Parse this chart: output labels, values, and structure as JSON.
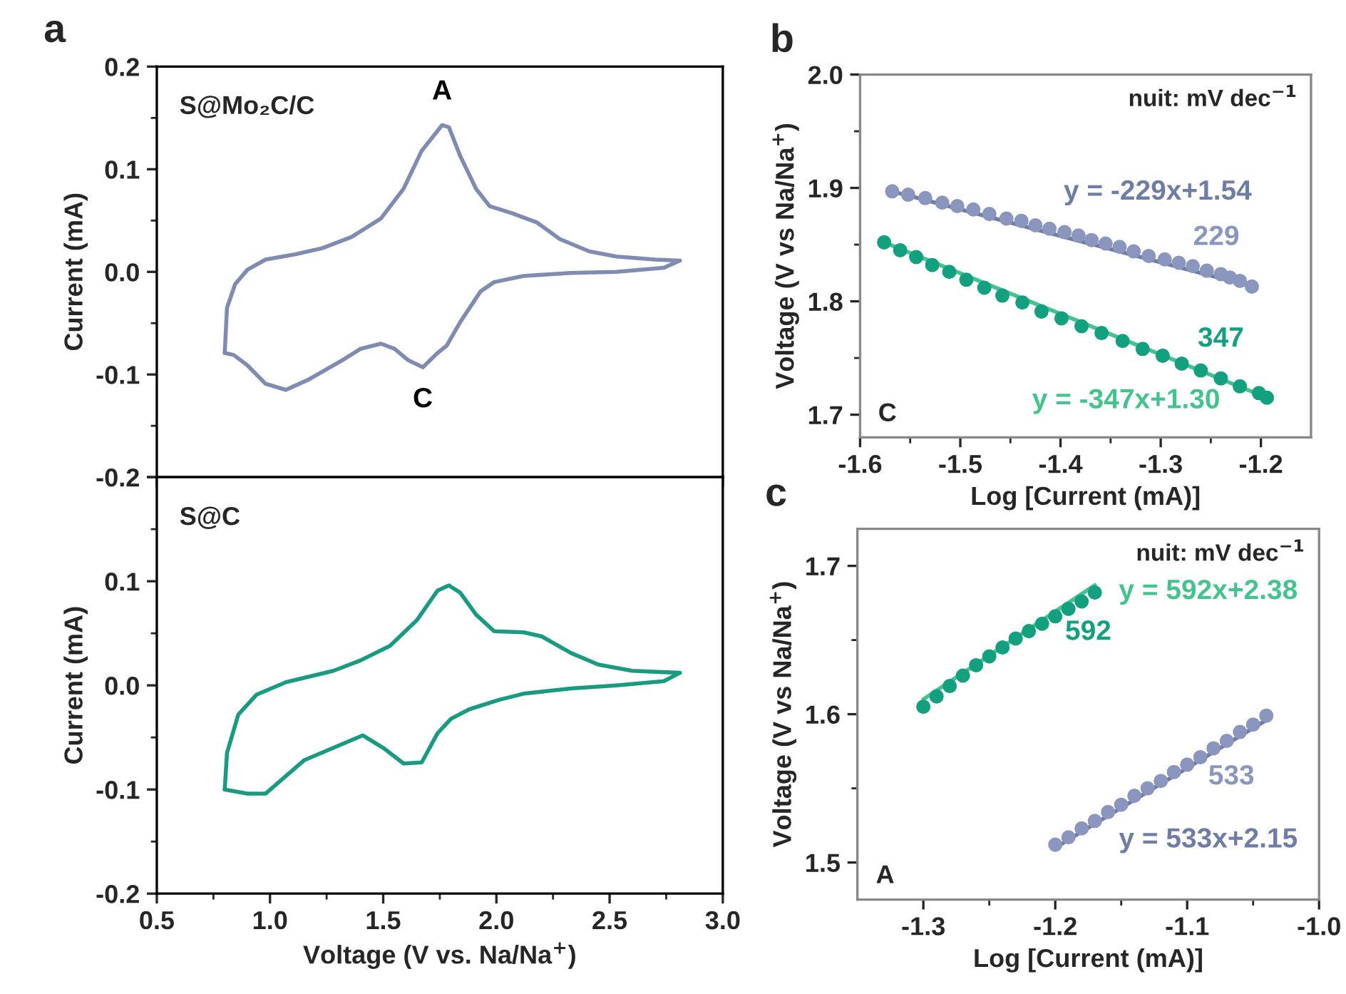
{
  "chart_data": [
    {
      "type": "line",
      "ylabel": "Current (mA)",
      "xlim": [
        0.5,
        3.0
      ],
      "xticks": [
        0.5,
        1,
        1.5,
        2,
        2.5,
        3
      ],
      "ylim": [
        -0.2,
        0.2
      ],
      "yticks": [
        -0.2,
        -0.1,
        {
          "value": 0,
          "label": "0.0"
        },
        0.1,
        0.2
      ],
      "tick_labels": "y",
      "annotations": [
        "a",
        "S@Mo₂C/C",
        {
          "text": "A",
          "x": 1.76,
          "y": 0.143
        },
        {
          "text": "C",
          "x": 1.675,
          "y": -0.093
        }
      ],
      "series": [
        {
          "color": "#7f8bb0",
          "x": [
            0.8,
            0.81,
            0.846,
            0.9,
            0.98,
            1.11,
            1.23,
            1.36,
            1.49,
            1.59,
            1.67,
            1.76,
            1.79,
            1.84,
            1.91,
            1.97,
            2.07,
            2.18,
            2.28,
            2.41,
            2.53,
            2.7,
            2.81
          ],
          "values": [
            -0.079,
            -0.035,
            -0.012,
            0.002,
            0.012,
            0.017,
            0.023,
            0.034,
            0.052,
            0.081,
            0.118,
            0.143,
            0.141,
            0.113,
            0.081,
            0.064,
            0.057,
            0.048,
            0.032,
            0.02,
            0.015,
            0.012,
            0.011
          ]
        },
        {
          "color": "#7f8bb0",
          "x": [
            2.81,
            2.74,
            2.53,
            2.33,
            2.12,
            1.99,
            1.93,
            1.84,
            1.78,
            1.74,
            1.675,
            1.61,
            1.55,
            1.49,
            1.4,
            1.32,
            1.17,
            1.07,
            0.98,
            0.9,
            0.84,
            0.8
          ],
          "values": [
            0.011,
            0.004,
            0.0,
            -0.001,
            -0.004,
            -0.01,
            -0.019,
            -0.049,
            -0.072,
            -0.079,
            -0.093,
            -0.086,
            -0.075,
            -0.07,
            -0.075,
            -0.086,
            -0.105,
            -0.115,
            -0.109,
            -0.091,
            -0.081,
            -0.079
          ]
        }
      ]
    },
    {
      "type": "line",
      "ylabel": "Current (mA)",
      "xlabel": "Voltage (V vs. Na/Na$^{+}$)",
      "xlim": [
        0.5,
        3.0
      ],
      "xticks": [
        0.5,
        {
          "value": 1.0,
          "label": "1.0"
        },
        1.5,
        {
          "value": 2.0,
          "label": "2.0"
        },
        2.5,
        {
          "value": 3.0,
          "label": "3.0"
        }
      ],
      "ylim": [
        -0.2,
        0.2
      ],
      "yticks": [
        -0.2,
        -0.1,
        {
          "value": 0,
          "label": "0.0"
        },
        0.1,
        {
          "value": 0.2,
          "label": null
        }
      ],
      "annotations": [
        "S@C"
      ],
      "series": [
        {
          "color": "#1a9a80",
          "x": [
            0.8,
            0.81,
            0.86,
            0.94,
            1.07,
            1.28,
            1.4,
            1.53,
            1.65,
            1.74,
            1.79,
            1.84,
            1.91,
            1.99,
            2.12,
            2.2,
            2.33,
            2.45,
            2.6,
            2.81
          ],
          "values": [
            -0.1,
            -0.065,
            -0.028,
            -0.009,
            0.003,
            0.014,
            0.024,
            0.038,
            0.063,
            0.091,
            0.096,
            0.089,
            0.068,
            0.052,
            0.051,
            0.047,
            0.031,
            0.02,
            0.014,
            0.012
          ]
        },
        {
          "color": "#1a9a80",
          "x": [
            2.81,
            2.74,
            2.53,
            2.33,
            2.12,
            2.01,
            1.88,
            1.8,
            1.74,
            1.67,
            1.59,
            1.5,
            1.41,
            1.28,
            1.15,
            0.98,
            0.9,
            0.8
          ],
          "values": [
            0.012,
            0.004,
            0.0,
            -0.003,
            -0.008,
            -0.014,
            -0.023,
            -0.032,
            -0.046,
            -0.074,
            -0.075,
            -0.06,
            -0.048,
            -0.06,
            -0.072,
            -0.104,
            -0.104,
            -0.1
          ]
        }
      ]
    },
    {
      "type": "scatter",
      "marker": "circle",
      "xlabel": "Log [Current (mA)]",
      "ylabel": "Voltage (V vs Na/Na$^{+}$)",
      "xlim": [
        -1.6,
        -1.15
      ],
      "xticks": [
        -1.6,
        -1.5,
        -1.4,
        -1.3,
        -1.2
      ],
      "ylim": [
        1.68,
        2.0
      ],
      "yticks": [
        1.7,
        1.8,
        1.9,
        {
          "value": 2.0,
          "label": "2.0"
        }
      ],
      "annotations": [
        "b",
        "nuit: mV dec$^{−1}$",
        "C"
      ],
      "series": [
        {
          "name": "229",
          "color": "#8a96bd",
          "x": [
            -1.568,
            -1.552,
            -1.535,
            -1.518,
            -1.503,
            -1.487,
            -1.471,
            -1.454,
            -1.439,
            -1.425,
            -1.411,
            -1.396,
            -1.382,
            -1.369,
            -1.355,
            -1.341,
            -1.327,
            -1.312,
            -1.296,
            -1.282,
            -1.268,
            -1.254,
            -1.24,
            -1.231,
            -1.221,
            -1.209
          ],
          "values": [
            1.897,
            1.894,
            1.891,
            1.887,
            1.884,
            1.881,
            1.877,
            1.873,
            1.871,
            1.867,
            1.864,
            1.861,
            1.858,
            1.854,
            1.851,
            1.848,
            1.844,
            1.84,
            1.837,
            1.834,
            1.831,
            1.827,
            1.824,
            1.821,
            1.818,
            1.813
          ]
        },
        {
          "name": "347",
          "color": "#13a07e",
          "x": [
            -1.576,
            -1.56,
            -1.544,
            -1.528,
            -1.511,
            -1.494,
            -1.476,
            -1.458,
            -1.438,
            -1.419,
            -1.399,
            -1.379,
            -1.359,
            -1.338,
            -1.318,
            -1.298,
            -1.279,
            -1.26,
            -1.24,
            -1.221,
            -1.202,
            -1.194
          ],
          "values": [
            1.852,
            1.845,
            1.839,
            1.832,
            1.826,
            1.819,
            1.812,
            1.805,
            1.799,
            1.791,
            1.785,
            1.778,
            1.772,
            1.765,
            1.758,
            1.752,
            1.745,
            1.739,
            1.732,
            1.725,
            1.719,
            1.715
          ]
        },
        {
          "type": "line",
          "marker": "none",
          "name": "y = -229x+1.54",
          "color": "#6f7ca6",
          "x": [
            -1.568,
            -1.209
          ],
          "values": [
            1.897,
            1.813
          ]
        },
        {
          "type": "line",
          "marker": "none",
          "name": "y = -347x+1.30",
          "color": "#45c38f",
          "x": [
            -1.576,
            -1.194
          ],
          "values": [
            1.852,
            1.715
          ]
        }
      ]
    },
    {
      "type": "scatter",
      "marker": "circle",
      "xlabel": "Log [Current (mA)]",
      "ylabel": "Voltage (V vs Na/Na$^{+}$)",
      "xlim": [
        -1.35,
        -1.0
      ],
      "xticks": [
        -1.3,
        -1.2,
        -1.1,
        {
          "value": -1.0,
          "label": "-1.0"
        }
      ],
      "ylim": [
        1.475,
        1.725
      ],
      "yticks": [
        1.5,
        1.6,
        1.7
      ],
      "annotations": [
        "c",
        "nuit: mV dec$^{−1}$",
        "A"
      ],
      "series": [
        {
          "name": "592",
          "color": "#13a07e",
          "x": [
            -1.3,
            -1.29,
            -1.28,
            -1.27,
            -1.26,
            -1.25,
            -1.24,
            -1.23,
            -1.22,
            -1.21,
            -1.2,
            -1.19,
            -1.18,
            -1.17
          ],
          "values": [
            1.605,
            1.612,
            1.619,
            1.626,
            1.633,
            1.639,
            1.645,
            1.651,
            1.656,
            1.661,
            1.666,
            1.671,
            1.676,
            1.682
          ]
        },
        {
          "name": "533",
          "color": "#8a96bd",
          "x": [
            -1.2,
            -1.19,
            -1.18,
            -1.17,
            -1.16,
            -1.15,
            -1.14,
            -1.13,
            -1.12,
            -1.11,
            -1.1,
            -1.09,
            -1.08,
            -1.07,
            -1.06,
            -1.05,
            -1.04
          ],
          "values": [
            1.512,
            1.517,
            1.523,
            1.528,
            1.534,
            1.539,
            1.545,
            1.55,
            1.555,
            1.561,
            1.566,
            1.571,
            1.577,
            1.582,
            1.588,
            1.593,
            1.599
          ]
        },
        {
          "type": "line",
          "marker": "none",
          "name": "y = 592x+2.38",
          "color": "#45c38f",
          "x": [
            -1.3,
            -1.17
          ],
          "values": [
            1.61,
            1.687
          ]
        },
        {
          "type": "line",
          "marker": "none",
          "name": "y = 533x+2.15",
          "color": "#6f7ca6",
          "x": [
            -1.2,
            -1.04
          ],
          "values": [
            1.51,
            1.596
          ]
        }
      ]
    }
  ]
}
